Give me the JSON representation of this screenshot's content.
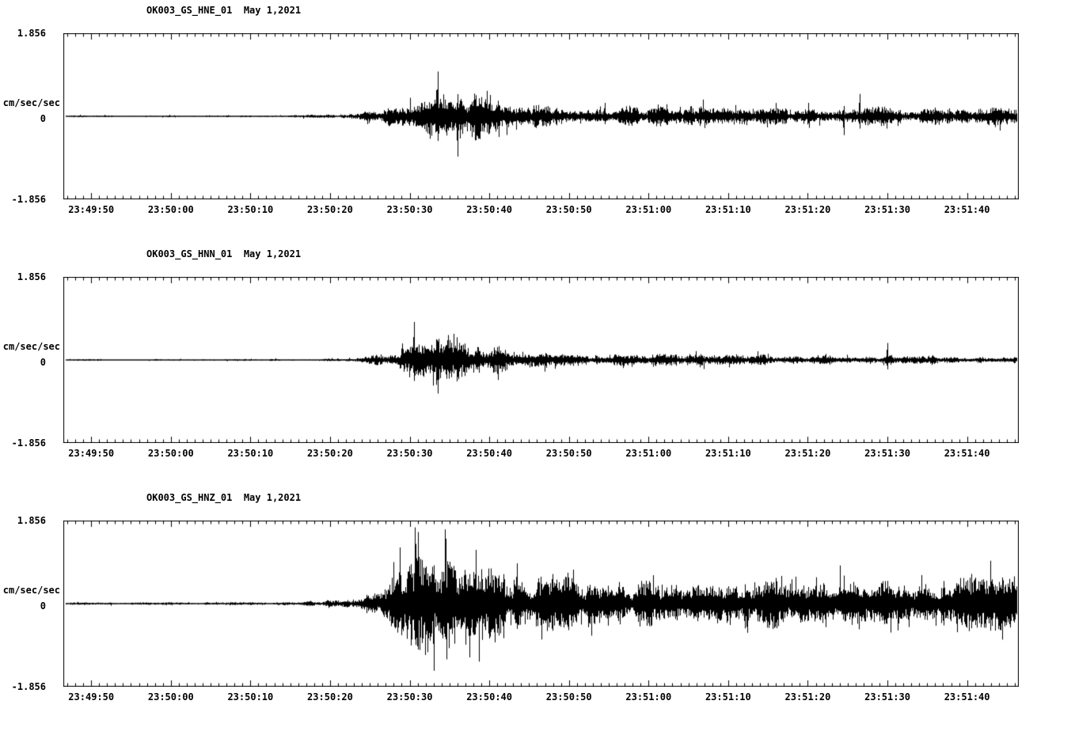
{
  "chart_data": {
    "type": "line",
    "kind": "seismogram-3-component",
    "background_color": "#ffffff",
    "trace_color": "#000000",
    "grid": false,
    "legend": false,
    "x_axis": {
      "time_span_seconds": 120,
      "first_tick_offset_seconds": 3.5,
      "major_tick_interval_seconds": 10,
      "minor_tick_interval_seconds": 1
    },
    "x_tick_labels": [
      "23:49:50",
      "23:50:00",
      "23:50:10",
      "23:50:20",
      "23:50:30",
      "23:50:40",
      "23:50:50",
      "23:51:00",
      "23:51:10",
      "23:51:20",
      "23:51:30",
      "23:51:40"
    ],
    "y_axis": {
      "max_label": "1.856",
      "zero_label": "0",
      "min_label": "-1.856",
      "unit_label": "cm/sec/sec",
      "ylim": [
        -1.856,
        1.856
      ]
    },
    "panels": [
      {
        "title": "OK003_GS_HNE_01  May 1,2021",
        "station": "OK003",
        "channel": "HNE",
        "date": "May 1,2021",
        "envelope": {
          "t": [
            0,
            25,
            32,
            36,
            39,
            42,
            45,
            48,
            51,
            54,
            58,
            64,
            72,
            80,
            88,
            96,
            104,
            112,
            120
          ],
          "amp": [
            0.018,
            0.02,
            0.03,
            0.05,
            0.12,
            0.3,
            0.5,
            0.62,
            0.5,
            0.3,
            0.24,
            0.2,
            0.19,
            0.18,
            0.18,
            0.19,
            0.18,
            0.17,
            0.17
          ]
        },
        "spikes": {
          "t": [
            47,
            49.5,
            68,
            98,
            100
          ],
          "amp": [
            1.0,
            0.9,
            0.3,
            0.42,
            0.5
          ]
        }
      },
      {
        "title": "OK003_GS_HNN_01  May 1,2021",
        "station": "OK003",
        "channel": "HNN",
        "date": "May 1,2021",
        "envelope": {
          "t": [
            0,
            25,
            33,
            37,
            40,
            43,
            46,
            49,
            52,
            55,
            59,
            65,
            75,
            90,
            105,
            120
          ],
          "amp": [
            0.015,
            0.018,
            0.025,
            0.05,
            0.12,
            0.3,
            0.42,
            0.48,
            0.4,
            0.28,
            0.18,
            0.13,
            0.11,
            0.1,
            0.09,
            0.08
          ]
        },
        "spikes": {
          "t": [
            44,
            47,
            103.5
          ],
          "amp": [
            0.85,
            0.75,
            0.38
          ]
        }
      },
      {
        "title": "OK003_GS_HNZ_01  May 1,2021",
        "station": "OK003",
        "channel": "HNZ",
        "date": "May 1,2021",
        "envelope": {
          "t": [
            0,
            20,
            30,
            35,
            38,
            41,
            44,
            46,
            49,
            52,
            55,
            58,
            62,
            68,
            75,
            82,
            90,
            98,
            106,
            114,
            120
          ],
          "amp": [
            0.02,
            0.025,
            0.04,
            0.08,
            0.18,
            0.45,
            0.8,
            1.0,
            0.95,
            0.75,
            0.6,
            0.55,
            0.5,
            0.45,
            0.42,
            0.45,
            0.48,
            0.5,
            0.48,
            0.5,
            0.48
          ]
        },
        "spikes": {
          "t": [
            44.5,
            46.5,
            48,
            51,
            57,
            60
          ],
          "amp": [
            1.6,
            1.5,
            1.45,
            1.2,
            0.9,
            0.8
          ]
        }
      }
    ]
  }
}
